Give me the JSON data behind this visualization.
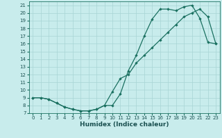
{
  "xlabel": "Humidex (Indice chaleur)",
  "ylabel": "",
  "bg_color": "#c8ecec",
  "line_color": "#1a7060",
  "line1_x": [
    0,
    1,
    2,
    3,
    4,
    5,
    6,
    7,
    8,
    9,
    10,
    11,
    12,
    13,
    14,
    15,
    16,
    17,
    18,
    19,
    20,
    21,
    22,
    23
  ],
  "line1_y": [
    9,
    9,
    8.8,
    8.3,
    7.8,
    7.5,
    7.3,
    7.3,
    7.5,
    8.0,
    8.0,
    9.5,
    12.5,
    14.5,
    17.0,
    19.2,
    20.5,
    20.5,
    20.3,
    20.8,
    21.0,
    19.3,
    16.2,
    16.0
  ],
  "line2_x": [
    0,
    1,
    2,
    3,
    4,
    5,
    6,
    7,
    8,
    9,
    10,
    11,
    12,
    13,
    14,
    15,
    16,
    17,
    18,
    19,
    20,
    21,
    22,
    23
  ],
  "line2_y": [
    9,
    9,
    8.8,
    8.3,
    7.8,
    7.5,
    7.3,
    7.3,
    7.5,
    8.0,
    9.8,
    11.5,
    12.0,
    13.5,
    14.5,
    15.5,
    16.5,
    17.5,
    18.5,
    19.5,
    20.0,
    20.5,
    19.5,
    16.0
  ],
  "xlim": [
    -0.5,
    23.5
  ],
  "ylim": [
    7,
    21.5
  ],
  "xticks": [
    0,
    1,
    2,
    3,
    4,
    5,
    6,
    7,
    8,
    9,
    10,
    11,
    12,
    13,
    14,
    15,
    16,
    17,
    18,
    19,
    20,
    21,
    22,
    23
  ],
  "yticks": [
    7,
    8,
    9,
    10,
    11,
    12,
    13,
    14,
    15,
    16,
    17,
    18,
    19,
    20,
    21
  ]
}
